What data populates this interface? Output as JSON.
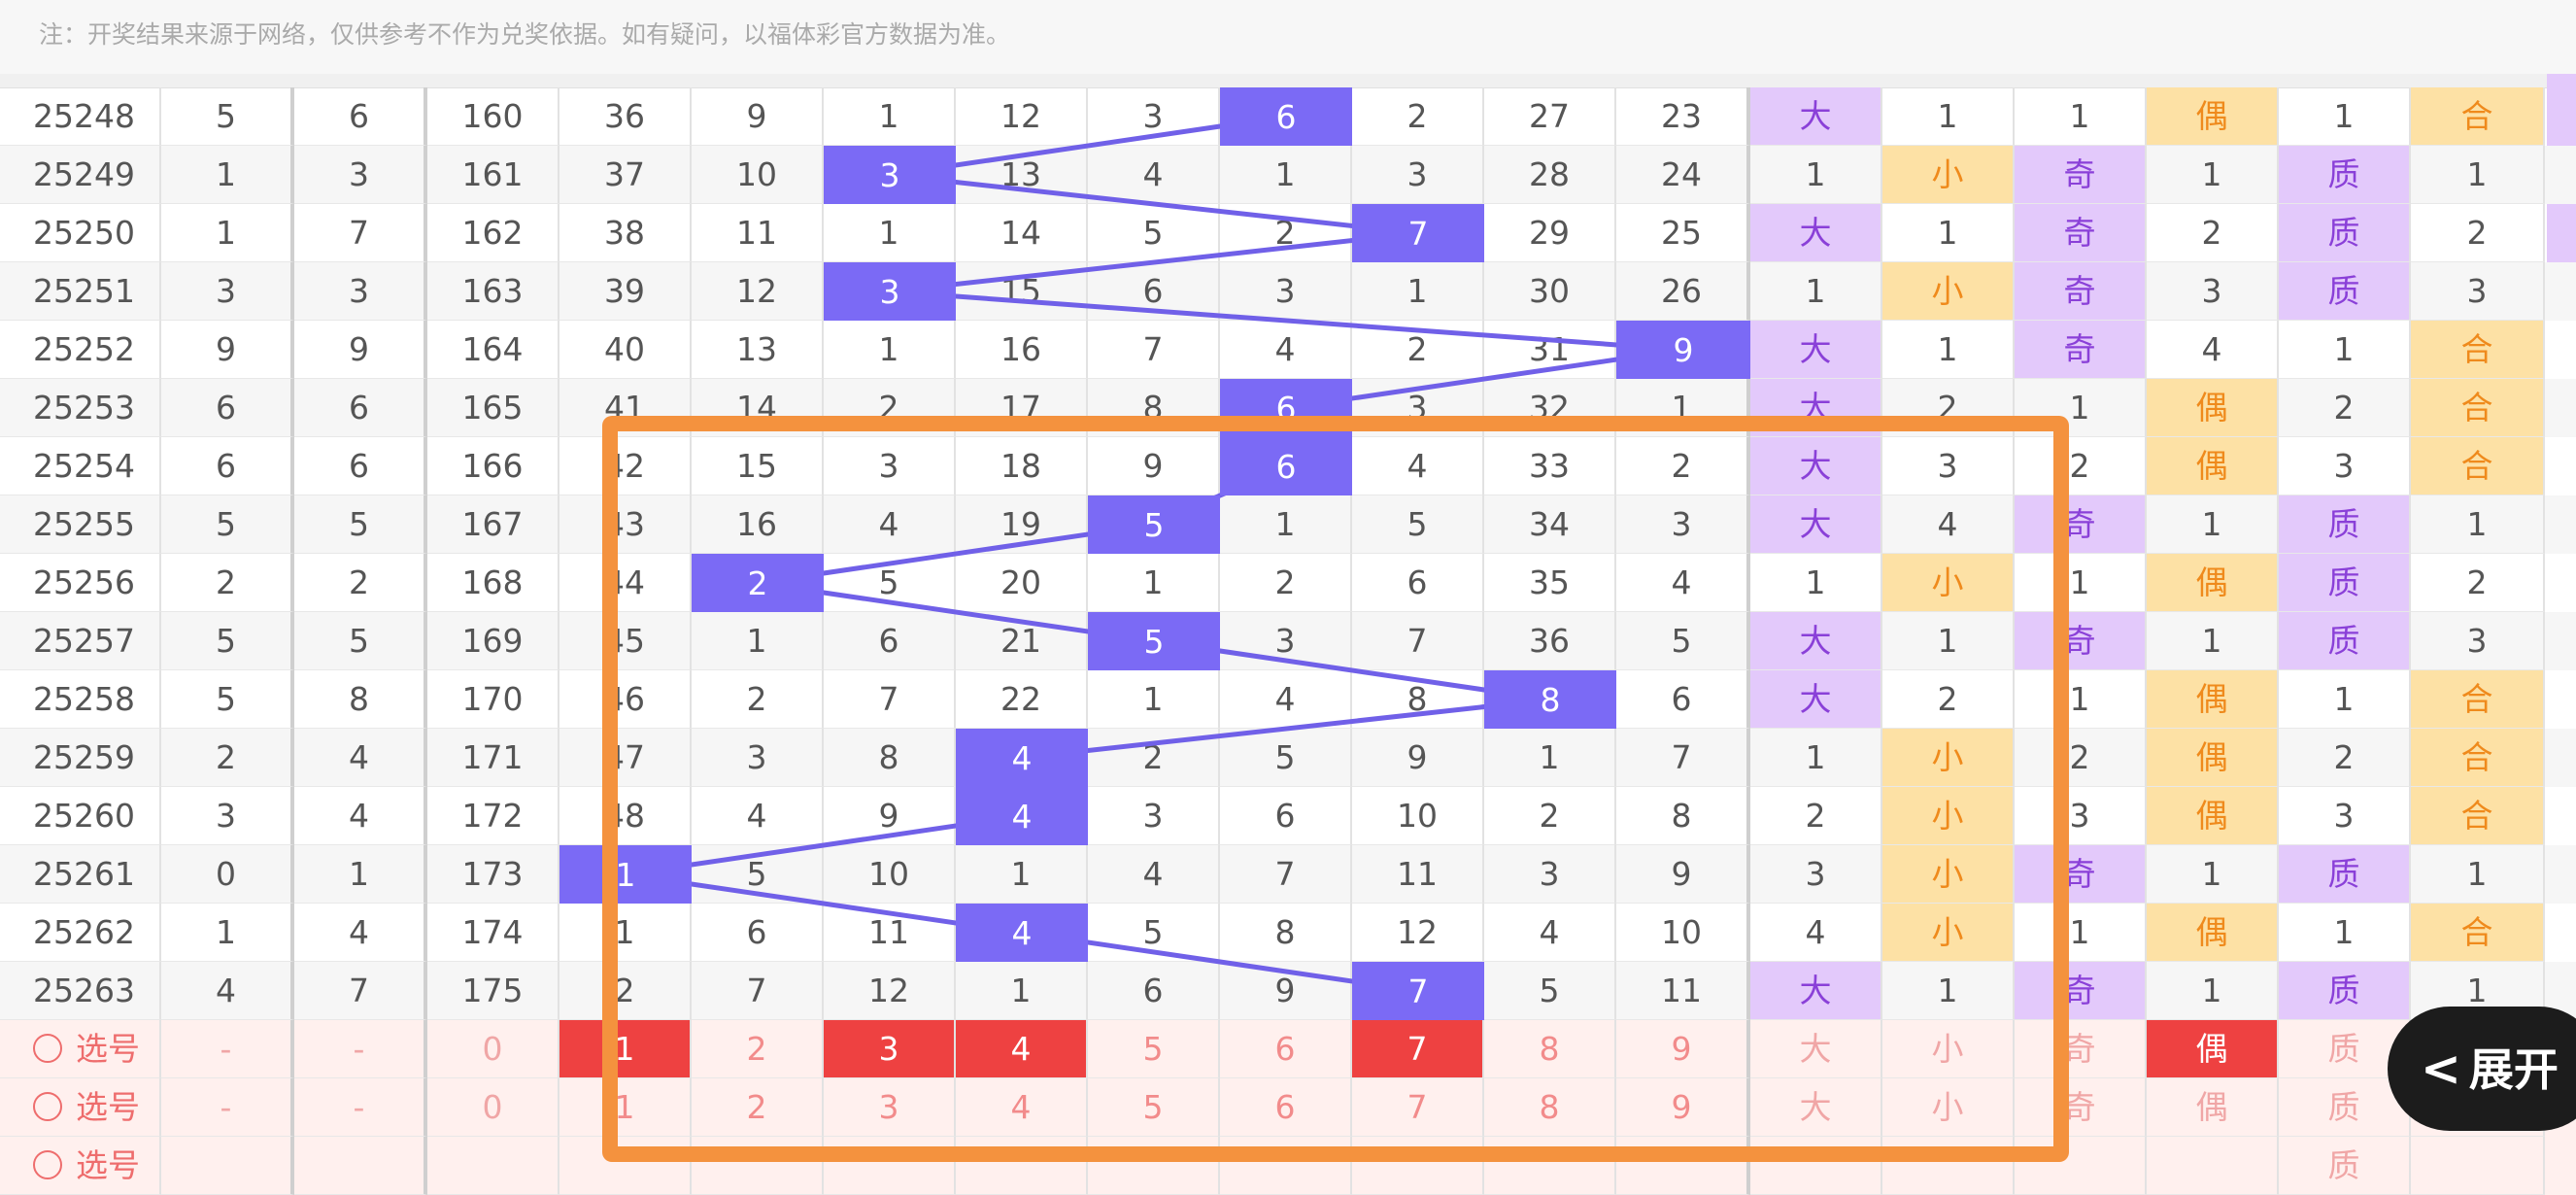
{
  "notice": "注：开奖结果来源于网络，仅供参考不作为兑奖依据。如有疑问，以福体彩官方数据为准。",
  "expand_button": "展开",
  "rows": [
    {
      "period": "25248",
      "c1": "5",
      "c2": "6",
      "c3": "160",
      "d": [
        "36",
        "9",
        "1",
        "12",
        "3",
        "6",
        "2",
        "27",
        "23"
      ],
      "hit": 5,
      "s1": "大",
      "s2": "1",
      "s3": "1",
      "s4": "偶",
      "s5": "1",
      "s6": "合"
    },
    {
      "period": "25249",
      "c1": "1",
      "c2": "3",
      "c3": "161",
      "d": [
        "37",
        "10",
        "3",
        "13",
        "4",
        "1",
        "3",
        "28",
        "24"
      ],
      "hit": 2,
      "s1": "1",
      "s2": "小",
      "s3": "奇",
      "s4": "1",
      "s5": "质",
      "s6": "1"
    },
    {
      "period": "25250",
      "c1": "1",
      "c2": "7",
      "c3": "162",
      "d": [
        "38",
        "11",
        "1",
        "14",
        "5",
        "2",
        "7",
        "29",
        "25"
      ],
      "hit": 6,
      "s1": "大",
      "s2": "1",
      "s3": "奇",
      "s4": "2",
      "s5": "质",
      "s6": "2"
    },
    {
      "period": "25251",
      "c1": "3",
      "c2": "3",
      "c3": "163",
      "d": [
        "39",
        "12",
        "3",
        "15",
        "6",
        "3",
        "1",
        "30",
        "26"
      ],
      "hit": 2,
      "s1": "1",
      "s2": "小",
      "s3": "奇",
      "s4": "3",
      "s5": "质",
      "s6": "3"
    },
    {
      "period": "25252",
      "c1": "9",
      "c2": "9",
      "c3": "164",
      "d": [
        "40",
        "13",
        "1",
        "16",
        "7",
        "4",
        "2",
        "31",
        "9"
      ],
      "hit": 8,
      "s1": "大",
      "s2": "1",
      "s3": "奇",
      "s4": "4",
      "s5": "1",
      "s6": "合"
    },
    {
      "period": "25253",
      "c1": "6",
      "c2": "6",
      "c3": "165",
      "d": [
        "41",
        "14",
        "2",
        "17",
        "8",
        "6",
        "3",
        "32",
        "1"
      ],
      "hit": 5,
      "s1": "大",
      "s2": "2",
      "s3": "1",
      "s4": "偶",
      "s5": "2",
      "s6": "合"
    },
    {
      "period": "25254",
      "c1": "6",
      "c2": "6",
      "c3": "166",
      "d": [
        "42",
        "15",
        "3",
        "18",
        "9",
        "6",
        "4",
        "33",
        "2"
      ],
      "hit": 5,
      "s1": "大",
      "s2": "3",
      "s3": "2",
      "s4": "偶",
      "s5": "3",
      "s6": "合"
    },
    {
      "period": "25255",
      "c1": "5",
      "c2": "5",
      "c3": "167",
      "d": [
        "43",
        "16",
        "4",
        "19",
        "5",
        "1",
        "5",
        "34",
        "3"
      ],
      "hit": 4,
      "s1": "大",
      "s2": "4",
      "s3": "奇",
      "s4": "1",
      "s5": "质",
      "s6": "1"
    },
    {
      "period": "25256",
      "c1": "2",
      "c2": "2",
      "c3": "168",
      "d": [
        "44",
        "2",
        "5",
        "20",
        "1",
        "2",
        "6",
        "35",
        "4"
      ],
      "hit": 1,
      "s1": "1",
      "s2": "小",
      "s3": "1",
      "s4": "偶",
      "s5": "质",
      "s6": "2"
    },
    {
      "period": "25257",
      "c1": "5",
      "c2": "5",
      "c3": "169",
      "d": [
        "45",
        "1",
        "6",
        "21",
        "5",
        "3",
        "7",
        "36",
        "5"
      ],
      "hit": 4,
      "s1": "大",
      "s2": "1",
      "s3": "奇",
      "s4": "1",
      "s5": "质",
      "s6": "3"
    },
    {
      "period": "25258",
      "c1": "5",
      "c2": "8",
      "c3": "170",
      "d": [
        "46",
        "2",
        "7",
        "22",
        "1",
        "4",
        "8",
        "8",
        "6"
      ],
      "hit": 7,
      "s1": "大",
      "s2": "2",
      "s3": "1",
      "s4": "偶",
      "s5": "1",
      "s6": "合"
    },
    {
      "period": "25259",
      "c1": "2",
      "c2": "4",
      "c3": "171",
      "d": [
        "47",
        "3",
        "8",
        "4",
        "2",
        "5",
        "9",
        "1",
        "7"
      ],
      "hit": 3,
      "s1": "1",
      "s2": "小",
      "s3": "2",
      "s4": "偶",
      "s5": "2",
      "s6": "合"
    },
    {
      "period": "25260",
      "c1": "3",
      "c2": "4",
      "c3": "172",
      "d": [
        "48",
        "4",
        "9",
        "4",
        "3",
        "6",
        "10",
        "2",
        "8"
      ],
      "hit": 3,
      "s1": "2",
      "s2": "小",
      "s3": "3",
      "s4": "偶",
      "s5": "3",
      "s6": "合"
    },
    {
      "period": "25261",
      "c1": "0",
      "c2": "1",
      "c3": "173",
      "d": [
        "1",
        "5",
        "10",
        "1",
        "4",
        "7",
        "11",
        "3",
        "9"
      ],
      "hit": 0,
      "s1": "3",
      "s2": "小",
      "s3": "奇",
      "s4": "1",
      "s5": "质",
      "s6": "1"
    },
    {
      "period": "25262",
      "c1": "1",
      "c2": "4",
      "c3": "174",
      "d": [
        "1",
        "6",
        "11",
        "4",
        "5",
        "8",
        "12",
        "4",
        "10"
      ],
      "hit": 3,
      "s1": "4",
      "s2": "小",
      "s3": "1",
      "s4": "偶",
      "s5": "1",
      "s6": "合"
    },
    {
      "period": "25263",
      "c1": "4",
      "c2": "7",
      "c3": "175",
      "d": [
        "2",
        "7",
        "12",
        "1",
        "6",
        "9",
        "7",
        "5",
        "11"
      ],
      "hit": 6,
      "s1": "大",
      "s2": "1",
      "s3": "奇",
      "s4": "1",
      "s5": "质",
      "s6": "1"
    }
  ],
  "select_rows": [
    {
      "label": "选号",
      "c1": "-",
      "c2": "-",
      "c3": "0",
      "d": [
        "1",
        "2",
        "3",
        "4",
        "5",
        "6",
        "7",
        "8",
        "9"
      ],
      "red": [
        0,
        2,
        3,
        6
      ],
      "s1": "大",
      "s2": "小",
      "s3": "奇",
      "s4": "偶",
      "s5": "质",
      "s6": "",
      "s4red": true
    },
    {
      "label": "选号",
      "c1": "-",
      "c2": "-",
      "c3": "0",
      "d": [
        "1",
        "2",
        "3",
        "4",
        "5",
        "6",
        "7",
        "8",
        "9"
      ],
      "red": [],
      "s1": "大",
      "s2": "小",
      "s3": "奇",
      "s4": "偶",
      "s5": "质",
      "s6": "",
      "s4red": false
    },
    {
      "label": "选号",
      "c1": "",
      "c2": "",
      "c3": "",
      "d": [
        "",
        "",
        "",
        "",
        "",
        "",
        "",
        "",
        ""
      ],
      "red": [],
      "s1": "",
      "s2": "",
      "s3": "",
      "s4": "",
      "s5": "质",
      "s6": "",
      "s4red": false
    }
  ]
}
